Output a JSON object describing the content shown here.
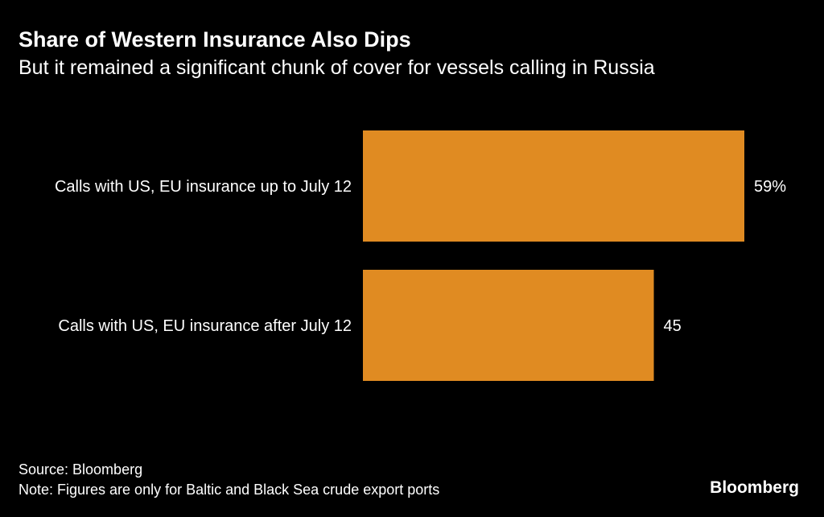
{
  "header": {
    "title": "Share of Western Insurance Also Dips",
    "subtitle": "But it remained a significant chunk of cover for vessels calling in Russia"
  },
  "footer": {
    "source": "Source: Bloomberg",
    "note": "Note: Figures are only for Baltic and Black Sea crude export ports",
    "brand": "Bloomberg"
  },
  "colors": {
    "background": "#000000",
    "bar": "#e08b22",
    "text": "#ffffff"
  },
  "chart_data": {
    "type": "bar",
    "orientation": "horizontal",
    "categories": [
      "Calls with US, EU insurance up to July 12",
      "Calls with US, EU insurance after July 12"
    ],
    "values": [
      59,
      45
    ],
    "value_labels": [
      "59%",
      "45"
    ],
    "unit": "%",
    "xlim": [
      0,
      59
    ],
    "grid": false,
    "legend": "none"
  }
}
